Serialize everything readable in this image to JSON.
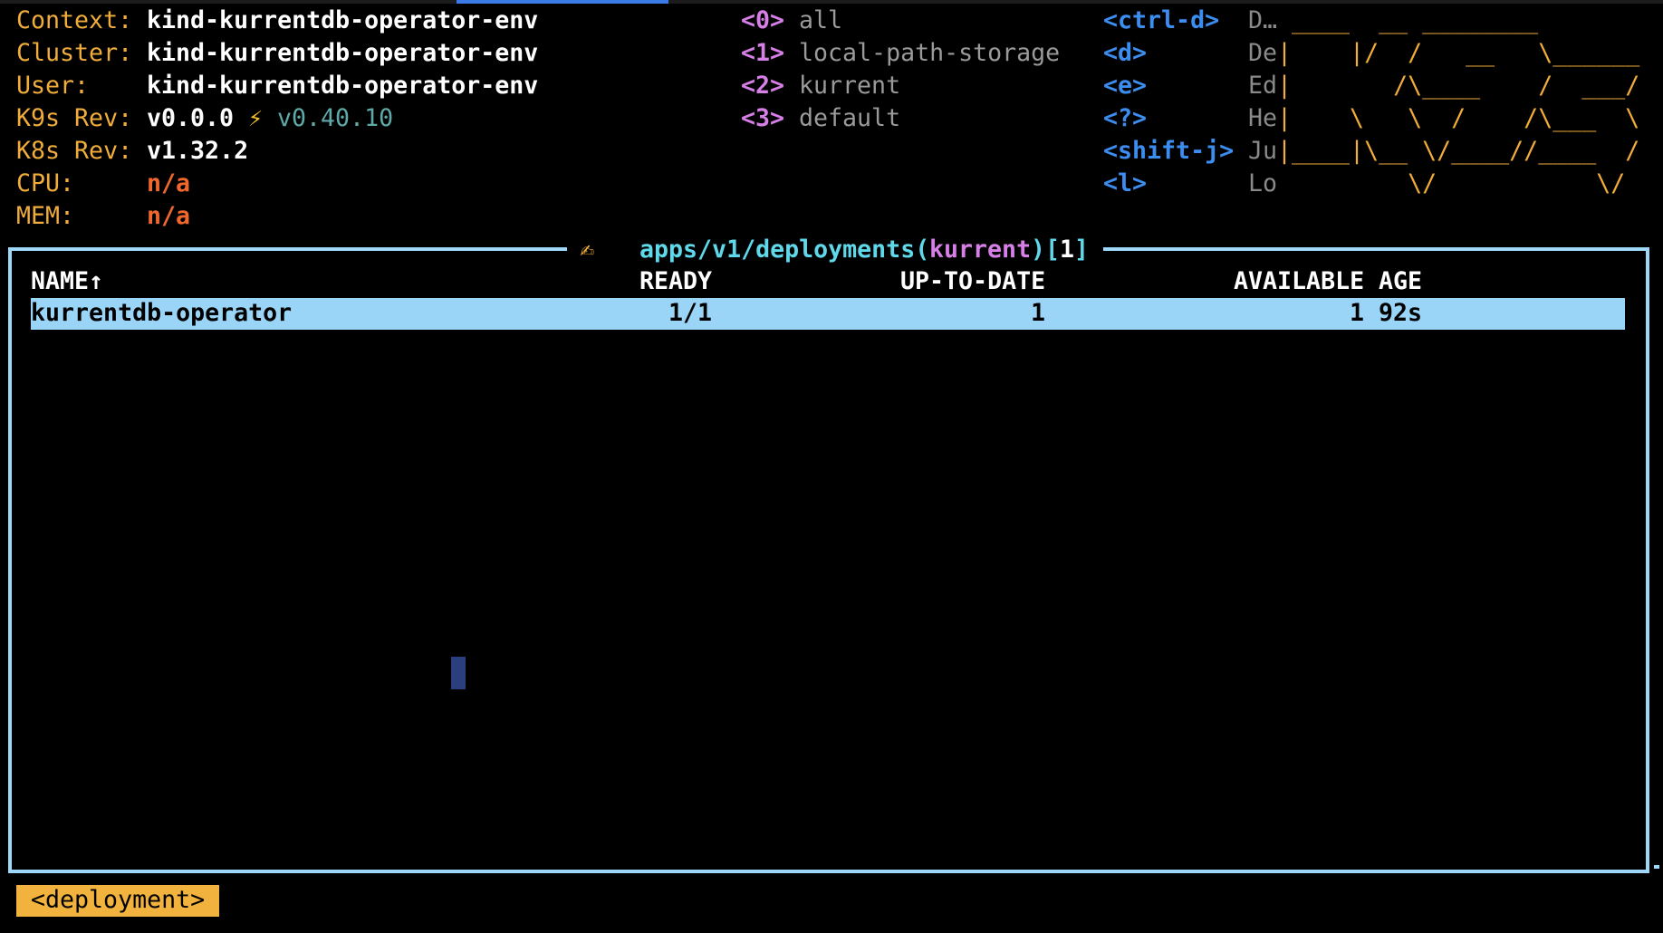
{
  "info": {
    "context_label": "Context:",
    "context": "kind-kurrentdb-operator-env",
    "cluster_label": "Cluster:",
    "cluster": "kind-kurrentdb-operator-env",
    "user_label": "User:",
    "user": "kind-kurrentdb-operator-env",
    "k9s_rev_label": "K9s Rev:",
    "k9s_rev": "v0.0.0",
    "k9s_upgrade_icon": "⚡",
    "k9s_latest": "v0.40.10",
    "k8s_rev_label": "K8s Rev:",
    "k8s_rev": "v1.32.2",
    "cpu_label": "CPU:",
    "cpu": "n/a",
    "mem_label": "MEM:",
    "mem": "n/a"
  },
  "namespaces": [
    {
      "key": "<0>",
      "name": "all"
    },
    {
      "key": "<1>",
      "name": "local-path-storage"
    },
    {
      "key": "<2>",
      "name": "kurrent"
    },
    {
      "key": "<3>",
      "name": "default"
    }
  ],
  "shortcuts": [
    {
      "key": "<ctrl-d>",
      "desc": "D…"
    },
    {
      "key": "<d>",
      "desc": "De"
    },
    {
      "key": "<e>",
      "desc": "Ed"
    },
    {
      "key": "<?>",
      "desc": "He"
    },
    {
      "key": "<shift-j>",
      "desc": "Ju"
    },
    {
      "key": "<l>",
      "desc": "Lo"
    }
  ],
  "logo": [
    " ____  __ ________",
    "|    |/  /   __   \\______",
    "|       /\\____    /  ___/",
    "|    \\   \\  /    /\\___  \\",
    "|____|\\__ \\/____//____  /",
    "         \\/           \\/"
  ],
  "table": {
    "title_icon": "✍",
    "resource": "apps/v1/deployments(",
    "namespace": "kurrent",
    "close": ")[",
    "count": "1",
    "end": "]",
    "columns": [
      "NAME↑",
      "READY",
      "UP-TO-DATE",
      "AVAILABLE",
      "AGE"
    ],
    "rows": [
      {
        "name": "kurrentdb-operator",
        "ready": "1/1",
        "up_to_date": "1",
        "available": "1",
        "age": "92s"
      }
    ]
  },
  "footer": {
    "crumb": "<deployment>"
  },
  "colors": {
    "accent": "#f0ad3c",
    "border": "#9ed7f7",
    "selection": "#9ad5f8",
    "keys": "#3c8df0",
    "namespace": "#d67fe6"
  }
}
